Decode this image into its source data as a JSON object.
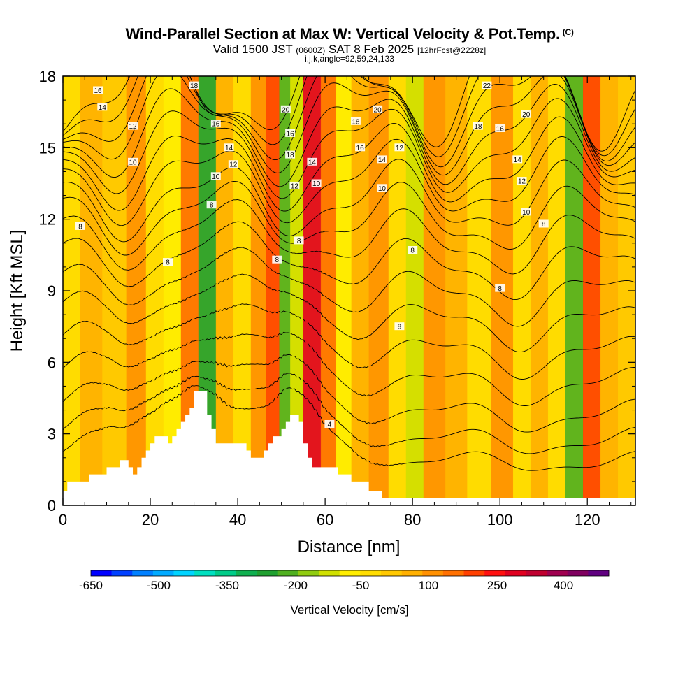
{
  "header": {
    "title": "Wind-Parallel Section at Max W: Vertical Velocity & Pot.Temp.",
    "copyright": "(C)",
    "valid_prefix": "Valid 1500 JST",
    "valid_zulu": "(0600Z)",
    "valid_date": "SAT 8 Feb 2025",
    "forecast": "[12hrFcst@2228z]",
    "params": "i,j,k,angle=92,59,24,133"
  },
  "chart_data": {
    "type": "heatmap",
    "title": "Wind-Parallel Section at Max W: Vertical Velocity & Pot.Temp.",
    "xlabel": "Distance [nm]",
    "ylabel": "Height [Kft MSL]",
    "xlim": [
      0,
      131
    ],
    "ylim": [
      0,
      18
    ],
    "x_ticks": [
      0,
      20,
      40,
      60,
      80,
      100,
      120
    ],
    "y_ticks": [
      0,
      3,
      6,
      9,
      12,
      15,
      18
    ],
    "colorbar": {
      "label": "Vertical Velocity [cm/s]",
      "tick_labels": [
        "-650",
        "-500",
        "-350",
        "-200",
        "-50",
        "100",
        "250",
        "400"
      ],
      "colors": [
        "#0000ff",
        "#0040ff",
        "#0080ff",
        "#00aaff",
        "#00d4ff",
        "#00e0c0",
        "#00cc88",
        "#10b050",
        "#20a030",
        "#50b020",
        "#90cc10",
        "#d0e000",
        "#ffee00",
        "#ffdd00",
        "#ffc800",
        "#ffb000",
        "#ff9000",
        "#ff7000",
        "#ff4000",
        "#ff1010",
        "#e00020",
        "#c00030",
        "#a00050",
        "#800060",
        "#600080"
      ]
    },
    "velocity_bands": [
      {
        "x": 2,
        "w": -50
      },
      {
        "x": 6,
        "w": 60
      },
      {
        "x": 12,
        "w": 0
      },
      {
        "x": 17,
        "w": 120
      },
      {
        "x": 21,
        "w": -40
      },
      {
        "x": 25,
        "w": -120
      },
      {
        "x": 29,
        "w": 150
      },
      {
        "x": 33,
        "w": -300
      },
      {
        "x": 37,
        "w": 40
      },
      {
        "x": 41,
        "w": -60
      },
      {
        "x": 45,
        "w": 80
      },
      {
        "x": 48,
        "w": 200
      },
      {
        "x": 51,
        "w": -260
      },
      {
        "x": 53,
        "w": -150
      },
      {
        "x": 57,
        "w": 300
      },
      {
        "x": 61,
        "w": 150
      },
      {
        "x": 64,
        "w": -80
      },
      {
        "x": 68,
        "w": 60
      },
      {
        "x": 72,
        "w": 100
      },
      {
        "x": 77,
        "w": -60
      },
      {
        "x": 80,
        "w": -150
      },
      {
        "x": 85,
        "w": 80
      },
      {
        "x": 90,
        "w": 30
      },
      {
        "x": 95,
        "w": -40
      },
      {
        "x": 101,
        "w": 80
      },
      {
        "x": 105,
        "w": -40
      },
      {
        "x": 109,
        "w": 60
      },
      {
        "x": 113,
        "w": -50
      },
      {
        "x": 117,
        "w": -250
      },
      {
        "x": 121,
        "w": 180
      },
      {
        "x": 125,
        "w": 60
      },
      {
        "x": 129,
        "w": 0
      }
    ],
    "terrain": [
      {
        "x": 0,
        "h": 0.6
      },
      {
        "x": 1,
        "h": 1.0
      },
      {
        "x": 5,
        "h": 1.0
      },
      {
        "x": 6,
        "h": 1.3
      },
      {
        "x": 9,
        "h": 1.3
      },
      {
        "x": 10,
        "h": 1.6
      },
      {
        "x": 12,
        "h": 1.6
      },
      {
        "x": 13,
        "h": 1.9
      },
      {
        "x": 15,
        "h": 1.6
      },
      {
        "x": 16,
        "h": 1.3
      },
      {
        "x": 17,
        "h": 1.6
      },
      {
        "x": 18,
        "h": 2.0
      },
      {
        "x": 19,
        "h": 2.3
      },
      {
        "x": 20,
        "h": 2.6
      },
      {
        "x": 21,
        "h": 2.9
      },
      {
        "x": 24,
        "h": 2.6
      },
      {
        "x": 25,
        "h": 2.9
      },
      {
        "x": 26,
        "h": 3.2
      },
      {
        "x": 27,
        "h": 3.5
      },
      {
        "x": 28,
        "h": 3.8
      },
      {
        "x": 29,
        "h": 4.1
      },
      {
        "x": 30,
        "h": 4.8
      },
      {
        "x": 33,
        "h": 3.8
      },
      {
        "x": 34,
        "h": 3.2
      },
      {
        "x": 35,
        "h": 2.6
      },
      {
        "x": 40,
        "h": 2.6
      },
      {
        "x": 42,
        "h": 2.3
      },
      {
        "x": 43,
        "h": 2.0
      },
      {
        "x": 46,
        "h": 2.3
      },
      {
        "x": 47,
        "h": 2.6
      },
      {
        "x": 48,
        "h": 2.9
      },
      {
        "x": 50,
        "h": 3.2
      },
      {
        "x": 51,
        "h": 3.5
      },
      {
        "x": 52,
        "h": 3.8
      },
      {
        "x": 54,
        "h": 3.5
      },
      {
        "x": 55,
        "h": 2.6
      },
      {
        "x": 56,
        "h": 2.0
      },
      {
        "x": 57,
        "h": 1.6
      },
      {
        "x": 60,
        "h": 1.6
      },
      {
        "x": 63,
        "h": 1.3
      },
      {
        "x": 66,
        "h": 1.0
      },
      {
        "x": 70,
        "h": 0.6
      },
      {
        "x": 73,
        "h": 0.3
      },
      {
        "x": 131,
        "h": 0.3
      }
    ],
    "theta_levels": [
      4,
      6,
      8,
      10,
      12,
      14,
      16,
      18,
      20,
      22
    ],
    "contour_labels": [
      {
        "x": 8,
        "y": 17.4,
        "text": "16"
      },
      {
        "x": 9,
        "y": 16.7,
        "text": "14"
      },
      {
        "x": 16,
        "y": 15.9,
        "text": "12"
      },
      {
        "x": 16,
        "y": 14.4,
        "text": "10"
      },
      {
        "x": 30,
        "y": 17.6,
        "text": "18"
      },
      {
        "x": 35,
        "y": 16.0,
        "text": "16"
      },
      {
        "x": 38,
        "y": 15.0,
        "text": "14"
      },
      {
        "x": 39,
        "y": 14.3,
        "text": "12"
      },
      {
        "x": 35,
        "y": 13.8,
        "text": "10"
      },
      {
        "x": 34,
        "y": 12.6,
        "text": "8"
      },
      {
        "x": 4,
        "y": 11.7,
        "text": "8"
      },
      {
        "x": 24,
        "y": 10.2,
        "text": "8"
      },
      {
        "x": 51,
        "y": 16.6,
        "text": "20"
      },
      {
        "x": 52,
        "y": 15.6,
        "text": "16"
      },
      {
        "x": 52,
        "y": 14.7,
        "text": "18"
      },
      {
        "x": 57,
        "y": 14.4,
        "text": "14"
      },
      {
        "x": 53,
        "y": 13.4,
        "text": "12"
      },
      {
        "x": 58,
        "y": 13.5,
        "text": "10"
      },
      {
        "x": 54,
        "y": 11.1,
        "text": "8"
      },
      {
        "x": 49,
        "y": 10.3,
        "text": "8"
      },
      {
        "x": 67,
        "y": 16.1,
        "text": "18"
      },
      {
        "x": 72,
        "y": 16.6,
        "text": "20"
      },
      {
        "x": 68,
        "y": 15.0,
        "text": "16"
      },
      {
        "x": 73,
        "y": 14.5,
        "text": "14"
      },
      {
        "x": 77,
        "y": 15.0,
        "text": "12"
      },
      {
        "x": 73,
        "y": 13.3,
        "text": "10"
      },
      {
        "x": 80,
        "y": 10.7,
        "text": "8"
      },
      {
        "x": 97,
        "y": 17.6,
        "text": "22"
      },
      {
        "x": 95,
        "y": 15.9,
        "text": "18"
      },
      {
        "x": 100,
        "y": 15.8,
        "text": "16"
      },
      {
        "x": 106,
        "y": 16.4,
        "text": "20"
      },
      {
        "x": 104,
        "y": 14.5,
        "text": "14"
      },
      {
        "x": 105,
        "y": 13.6,
        "text": "12"
      },
      {
        "x": 106,
        "y": 12.3,
        "text": "10"
      },
      {
        "x": 110,
        "y": 11.8,
        "text": "8"
      },
      {
        "x": 100,
        "y": 9.1,
        "text": "8"
      },
      {
        "x": 77,
        "y": 7.5,
        "text": "8"
      },
      {
        "x": 61,
        "y": 3.4,
        "text": "4"
      }
    ]
  }
}
